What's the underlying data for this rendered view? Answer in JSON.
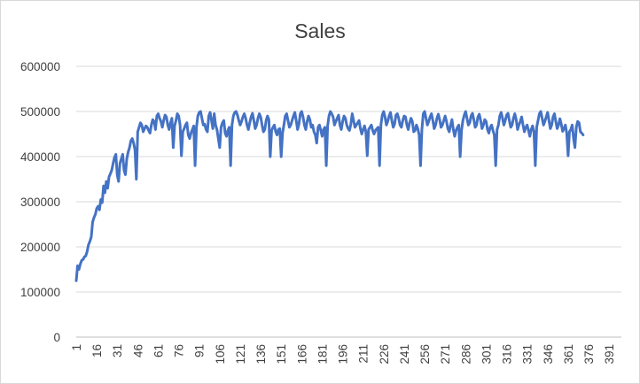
{
  "chart_data": {
    "type": "line",
    "title": "Sales",
    "xlabel": "",
    "ylabel": "",
    "ylim": [
      0,
      600000
    ],
    "y_ticks": [
      0,
      100000,
      200000,
      300000,
      400000,
      500000,
      600000
    ],
    "y_tick_labels": [
      "0",
      "100000",
      "200000",
      "300000",
      "400000",
      "500000",
      "600000"
    ],
    "x_tick_labels": [
      "1",
      "16",
      "31",
      "46",
      "61",
      "76",
      "91",
      "106",
      "121",
      "136",
      "151",
      "166",
      "181",
      "196",
      "211",
      "226",
      "241",
      "256",
      "271",
      "286",
      "301",
      "316",
      "331",
      "346",
      "361",
      "376",
      "391"
    ],
    "x_range": [
      1,
      400
    ],
    "grid": "horizontal",
    "legend": "none",
    "series_color": "#4472c4",
    "series": [
      {
        "x_start": 1,
        "x_step": 1,
        "values": [
          125000,
          158000,
          150000,
          162000,
          170000,
          172000,
          178000,
          180000,
          190000,
          205000,
          212000,
          222000,
          255000,
          265000,
          272000,
          285000,
          290000,
          282000,
          305000,
          298000,
          335000,
          320000,
          345000,
          330000,
          355000,
          362000,
          370000,
          385000,
          398000,
          405000,
          360000,
          345000,
          385000,
          395000,
          405000,
          370000,
          360000,
          395000,
          410000,
          420000,
          435000,
          440000,
          430000,
          415000,
          350000,
          455000,
          465000,
          475000,
          470000,
          455000,
          462000,
          468000,
          465000,
          458000,
          452000,
          470000,
          482000,
          478000,
          460000,
          490000,
          495000,
          485000,
          478000,
          465000,
          480000,
          492000,
          488000,
          470000,
          460000,
          475000,
          485000,
          420000,
          468000,
          480000,
          495000,
          490000,
          470000,
          402000,
          455000,
          462000,
          470000,
          475000,
          448000,
          440000,
          452000,
          460000,
          468000,
          380000,
          465000,
          490000,
          498000,
          500000,
          485000,
          470000,
          472000,
          460000,
          455000,
          490000,
          498000,
          480000,
          462000,
          495000,
          470000,
          460000,
          440000,
          420000,
          465000,
          475000,
          480000,
          452000,
          445000,
          458000,
          465000,
          380000,
          470000,
          490000,
          498000,
          500000,
          492000,
          480000,
          470000,
          478000,
          488000,
          495000,
          485000,
          470000,
          460000,
          475000,
          488000,
          496000,
          480000,
          462000,
          470000,
          485000,
          495000,
          488000,
          470000,
          455000,
          460000,
          480000,
          490000,
          482000,
          400000,
          458000,
          465000,
          470000,
          455000,
          448000,
          460000,
          462000,
          400000,
          452000,
          470000,
          490000,
          495000,
          480000,
          465000,
          470000,
          480000,
          490000,
          498000,
          480000,
          460000,
          472000,
          495000,
          500000,
          488000,
          470000,
          460000,
          478000,
          490000,
          482000,
          465000,
          470000,
          455000,
          448000,
          430000,
          465000,
          470000,
          458000,
          445000,
          460000,
          465000,
          380000,
          468000,
          490000,
          500000,
          495000,
          488000,
          470000,
          478000,
          485000,
          492000,
          470000,
          460000,
          478000,
          490000,
          485000,
          470000,
          462000,
          458000,
          472000,
          495000,
          480000,
          465000,
          470000,
          475000,
          480000,
          462000,
          450000,
          460000,
          468000,
          455000,
          402000,
          460000,
          465000,
          470000,
          458000,
          450000,
          458000,
          462000,
          465000,
          380000,
          470000,
          492000,
          500000,
          488000,
          470000,
          478000,
          490000,
          498000,
          480000,
          465000,
          472000,
          492000,
          495000,
          485000,
          470000,
          465000,
          480000,
          490000,
          488000,
          470000,
          460000,
          475000,
          485000,
          478000,
          455000,
          458000,
          470000,
          462000,
          448000,
          380000,
          460000,
          495000,
          500000,
          485000,
          470000,
          478000,
          488000,
          495000,
          480000,
          462000,
          470000,
          485000,
          494000,
          482000,
          465000,
          470000,
          480000,
          490000,
          478000,
          462000,
          455000,
          470000,
          482000,
          460000,
          445000,
          458000,
          465000,
          470000,
          400000,
          458000,
          480000,
          492000,
          500000,
          485000,
          470000,
          475000,
          490000,
          496000,
          482000,
          465000,
          470000,
          488000,
          494000,
          480000,
          462000,
          470000,
          482000,
          478000,
          460000,
          452000,
          465000,
          470000,
          458000,
          448000,
          380000,
          460000,
          470000,
          490000,
          498000,
          485000,
          470000,
          480000,
          492000,
          496000,
          480000,
          465000,
          470000,
          485000,
          495000,
          482000,
          460000,
          470000,
          478000,
          488000,
          470000,
          455000,
          465000,
          470000,
          458000,
          445000,
          460000,
          468000,
          455000,
          380000,
          465000,
          480000,
          495000,
          500000,
          485000,
          470000,
          478000,
          488000,
          498000,
          480000,
          462000,
          470000,
          488000,
          495000,
          478000,
          462000,
          470000,
          484000,
          472000,
          456000,
          462000,
          470000,
          452000,
          402000,
          455000,
          460000,
          470000,
          440000,
          420000,
          465000,
          478000,
          475000,
          455000,
          452000,
          448000
        ]
      }
    ]
  }
}
